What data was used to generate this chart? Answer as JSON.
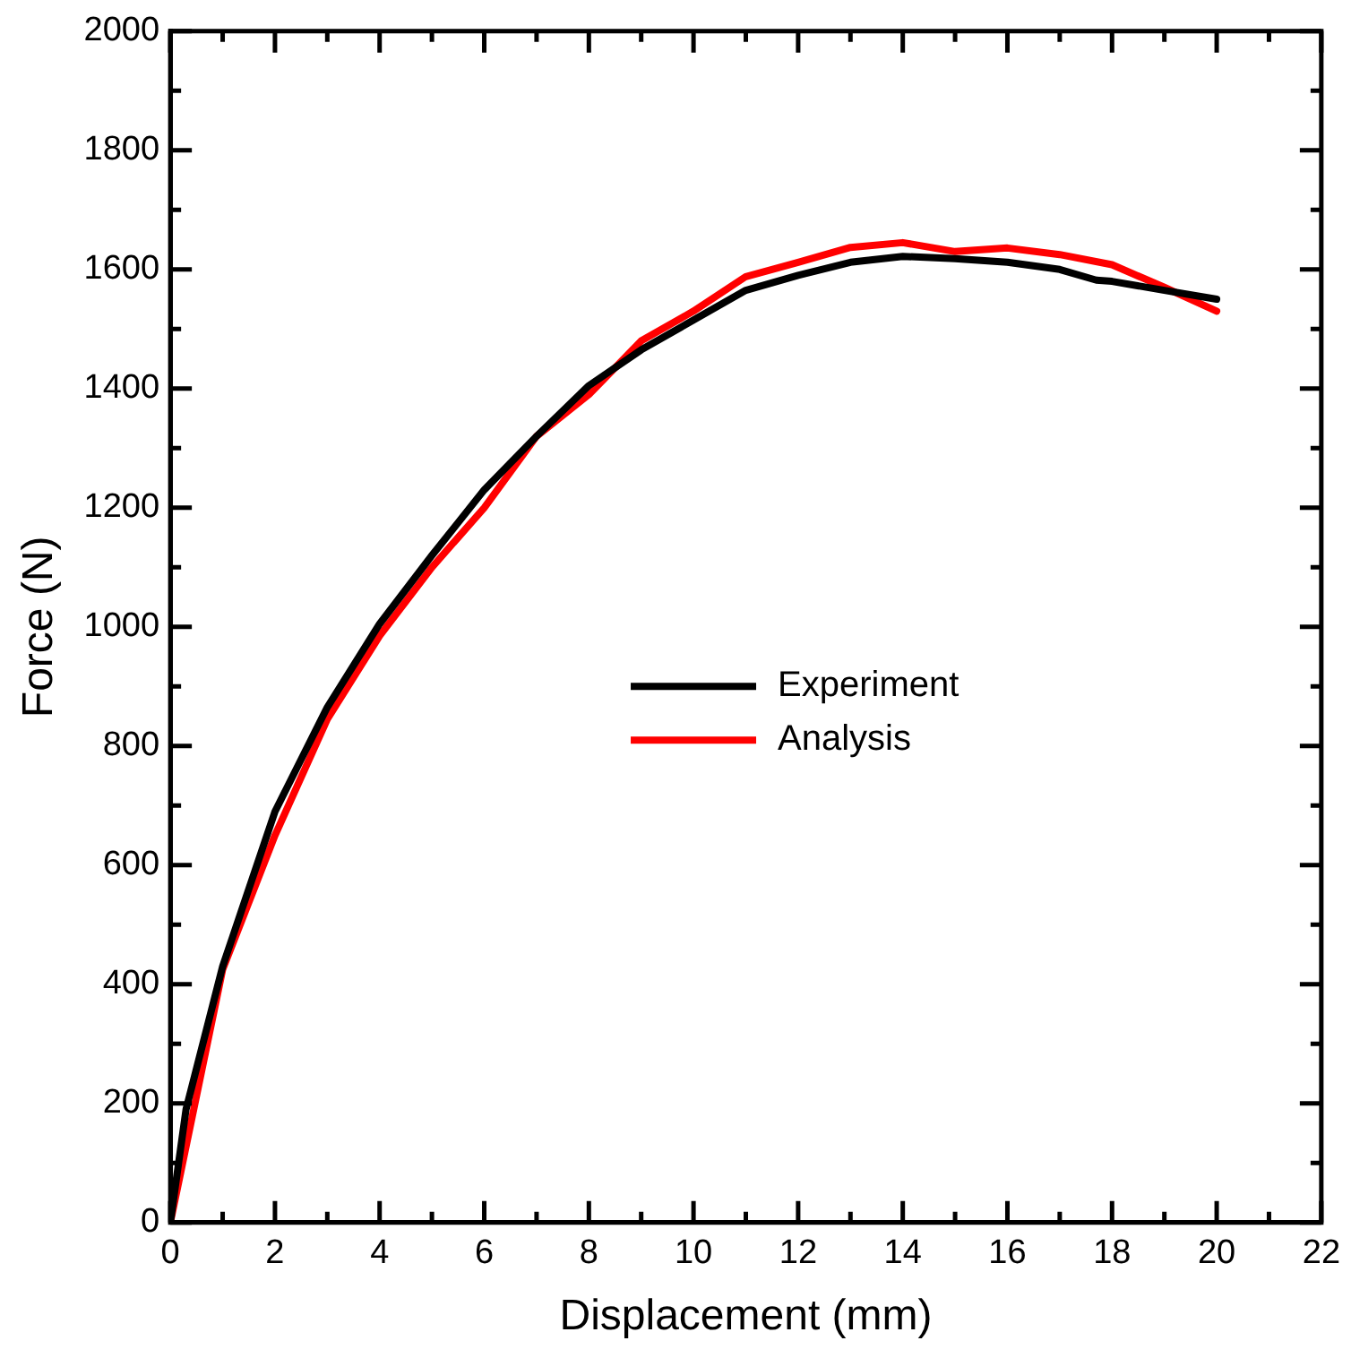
{
  "chart_data": {
    "type": "line",
    "xlabel": "Displacement (mm)",
    "ylabel": "Force (N)",
    "xlim": [
      0,
      22
    ],
    "xticks": [
      0,
      2,
      4,
      6,
      8,
      10,
      12,
      14,
      16,
      18,
      20,
      22
    ],
    "ylim": [
      0,
      2000
    ],
    "yticks": [
      0,
      200,
      400,
      600,
      800,
      1000,
      1200,
      1400,
      1600,
      1800,
      2000
    ],
    "grid": false,
    "legend": "center",
    "marker": "none",
    "line_style": "solid",
    "series": [
      {
        "name": "Experiment",
        "color": "#000000",
        "x": [
          0,
          0.3,
          1,
          2,
          3,
          4,
          5,
          6,
          7,
          8,
          9,
          10,
          11,
          12,
          13,
          14,
          15,
          16,
          17,
          17.7,
          18,
          19,
          20
        ],
        "values": [
          0,
          190,
          430,
          690,
          865,
          1005,
          1120,
          1230,
          1320,
          1405,
          1465,
          1515,
          1565,
          1590,
          1612,
          1622,
          1618,
          1612,
          1600,
          1582,
          1580,
          1565,
          1550
        ]
      },
      {
        "name": "Analysis",
        "color": "#ff0000",
        "x": [
          0,
          1,
          2,
          3,
          4,
          5,
          6,
          7,
          8,
          9,
          10,
          11,
          12,
          13,
          14,
          15,
          16,
          17,
          18,
          19,
          20
        ],
        "values": [
          0,
          425,
          650,
          845,
          985,
          1100,
          1200,
          1320,
          1390,
          1480,
          1530,
          1588,
          1612,
          1637,
          1645,
          1630,
          1636,
          1625,
          1608,
          1570,
          1530
        ]
      }
    ]
  }
}
